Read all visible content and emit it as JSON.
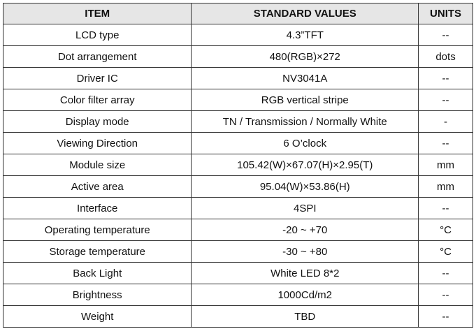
{
  "table": {
    "headers": [
      "ITEM",
      "STANDARD VALUES",
      "UNITS"
    ],
    "rows": [
      [
        "LCD type",
        "4.3”TFT",
        "--"
      ],
      [
        "Dot arrangement",
        "480(RGB)×272",
        "dots"
      ],
      [
        "Driver IC",
        "NV3041A",
        "--"
      ],
      [
        "Color filter array",
        "RGB vertical stripe",
        "--"
      ],
      [
        "Display mode",
        "TN / Transmission / Normally White",
        "-"
      ],
      [
        "Viewing Direction",
        "6 O’clock",
        "--"
      ],
      [
        "Module size",
        "105.42(W)×67.07(H)×2.95(T)",
        "mm"
      ],
      [
        "Active area",
        "95.04(W)×53.86(H)",
        "mm"
      ],
      [
        "Interface",
        "4SPI",
        "--"
      ],
      [
        "Operating temperature",
        "-20 ~ +70",
        "°C"
      ],
      [
        "Storage temperature",
        "-30 ~ +80",
        "°C"
      ],
      [
        "Back Light",
        "White LED 8*2",
        "--"
      ],
      [
        "Brightness",
        "1000Cd/m2",
        "--"
      ],
      [
        "Weight",
        "TBD",
        "--"
      ]
    ]
  }
}
